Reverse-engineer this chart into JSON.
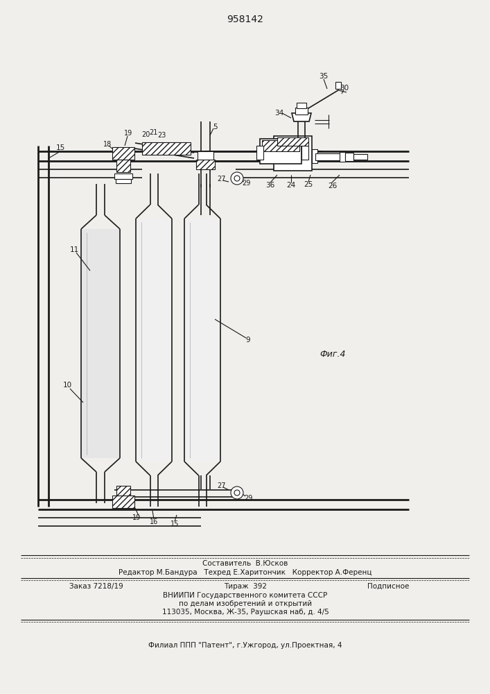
{
  "title": "958142",
  "fig_label": "Фиг.4",
  "bg": "#f0efeb",
  "lc": "#1a1a1a",
  "tc": "#1a1a1a",
  "footer": [
    [
      354,
      812,
      "Составитель  В.Юсков",
      7.5,
      "center"
    ],
    [
      354,
      825,
      "Редактор М.Бандура   Техред Е.Харитончик   Корректор А.Ференц",
      7.5,
      "center"
    ],
    [
      100,
      845,
      "Заказ 7218/19",
      7.5,
      "left"
    ],
    [
      354,
      845,
      "Тираж  392",
      7.5,
      "center"
    ],
    [
      590,
      845,
      "Подписное",
      7.5,
      "right"
    ],
    [
      354,
      858,
      "ВНИИПИ Государственного комитета СССР",
      7.5,
      "center"
    ],
    [
      354,
      870,
      "по делам изобретений и открытий",
      7.5,
      "center"
    ],
    [
      354,
      882,
      "113035, Москва, Ж-35, Раушская наб, д. 4/5",
      7.5,
      "center"
    ],
    [
      354,
      930,
      "Филиал ППП \"Патент\", г.Ужгород, ул.Проектная, 4",
      7.5,
      "center"
    ]
  ]
}
